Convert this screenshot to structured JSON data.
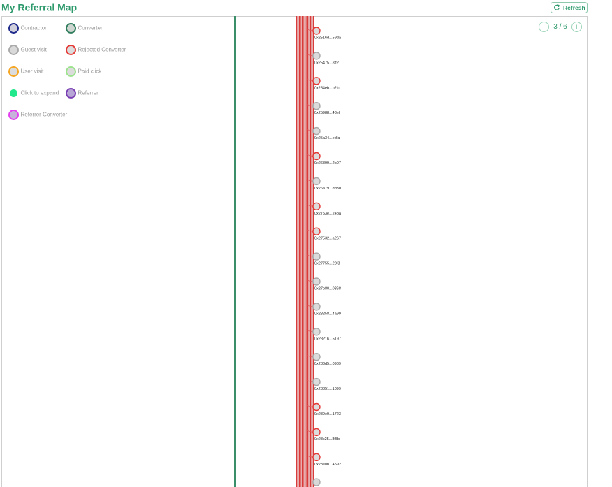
{
  "header": {
    "title": "My Referral Map",
    "refresh": "Refresh"
  },
  "pager": "3 / 6",
  "legend": [
    {
      "label": "Contractor",
      "stroke": "#1f2a8a",
      "fill": "#cfd0dc"
    },
    {
      "label": "Converter",
      "stroke": "#2f7d5d",
      "fill": "#cfd6d2"
    },
    {
      "label": "Guest visit",
      "stroke": "#a9a9a9",
      "fill": "#d9d9d9"
    },
    {
      "label": "Rejected Converter",
      "stroke": "#e53935",
      "fill": "#dcdcdc"
    },
    {
      "label": "User visit",
      "stroke": "#f5a623",
      "fill": "#dcdcdc"
    },
    {
      "label": "Paid click",
      "stroke": "#9be38c",
      "fill": "#dcdcdc"
    },
    {
      "label": "Click to expand",
      "stroke": "#22e88c",
      "fill": "#22e88c"
    },
    {
      "label": "Referrer",
      "stroke": "#7a3fb3",
      "fill": "#b8a6d6"
    },
    {
      "label": "Referrer Converter",
      "stroke": "#e43ff0",
      "fill": "#c7b3d9"
    }
  ],
  "nodes": [
    {
      "label": "0x2516d...59da",
      "color": "#e53935"
    },
    {
      "label": "0x25475...8ff2",
      "color": "#a9a9a9"
    },
    {
      "label": "0x254eb...b2fc",
      "color": "#e53935"
    },
    {
      "label": "0x25988...43ef",
      "color": "#a9a9a9"
    },
    {
      "label": "0x25a34...edfa",
      "color": "#a9a9a9"
    },
    {
      "label": "0x26899...2b07",
      "color": "#e53935"
    },
    {
      "label": "0x26a79...dd3d",
      "color": "#a9a9a9"
    },
    {
      "label": "0x2753e...24ba",
      "color": "#e53935"
    },
    {
      "label": "0x27532...a267",
      "color": "#e53935"
    },
    {
      "label": "0x27755...28f3",
      "color": "#a9a9a9"
    },
    {
      "label": "0x27b80...0368",
      "color": "#a9a9a9"
    },
    {
      "label": "0x28258...4a99",
      "color": "#a9a9a9"
    },
    {
      "label": "0x28216...5197",
      "color": "#a9a9a9"
    },
    {
      "label": "0x283d5...0989",
      "color": "#a9a9a9"
    },
    {
      "label": "0x28851...1099",
      "color": "#a9a9a9"
    },
    {
      "label": "0x289e9...1723",
      "color": "#e53935"
    },
    {
      "label": "0x28c25...8f5b",
      "color": "#e53935"
    },
    {
      "label": "0x28e0b...4592",
      "color": "#e53935"
    }
  ]
}
